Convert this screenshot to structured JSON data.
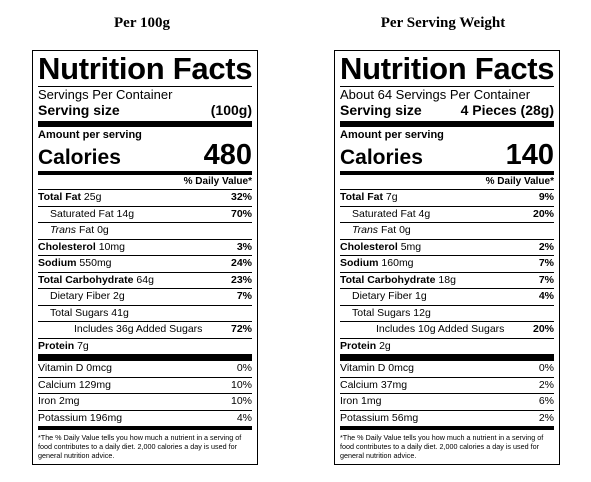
{
  "panels": [
    {
      "heading": "Per 100g",
      "title": "Nutrition Facts",
      "servings_per_container": "Servings Per Container",
      "serving_size_label": "Serving size",
      "serving_size_value": "(100g)",
      "amount_per_serving": "Amount per serving",
      "calories_label": "Calories",
      "calories_value": "480",
      "dv_header": "% Daily Value*",
      "rows": [
        {
          "name": "Total Fat",
          "amount": "25g",
          "dv": "32%"
        },
        {
          "name": "Saturated Fat",
          "amount": "14g",
          "dv": "70%"
        },
        {
          "name": "Trans",
          "amount": "Fat 0g",
          "dv": ""
        },
        {
          "name": "Cholesterol",
          "amount": "10mg",
          "dv": "3%"
        },
        {
          "name": "Sodium",
          "amount": "550mg",
          "dv": "24%"
        },
        {
          "name": "Total Carbohydrate",
          "amount": "64g",
          "dv": "23%"
        },
        {
          "name": "Dietary Fiber",
          "amount": "2g",
          "dv": "7%"
        },
        {
          "name": "Total Sugars",
          "amount": "41g",
          "dv": ""
        },
        {
          "name": "Includes 36g Added Sugars",
          "amount": "",
          "dv": "72%"
        },
        {
          "name": "Protein",
          "amount": "7g",
          "dv": ""
        }
      ],
      "vitamins": [
        {
          "name": "Vitamin D 0mcg",
          "dv": "0%"
        },
        {
          "name": "Calcium 129mg",
          "dv": "10%"
        },
        {
          "name": "Iron 2mg",
          "dv": "10%"
        },
        {
          "name": "Potassium 196mg",
          "dv": "4%"
        }
      ],
      "footnote": "*The % Daily Value tells you how much a nutrient in a serving of food contributes to a daily diet. 2,000 calories a day is used for general nutrition advice."
    },
    {
      "heading": "Per Serving Weight",
      "title": "Nutrition Facts",
      "servings_per_container": "About 64 Servings Per Container",
      "serving_size_label": "Serving size",
      "serving_size_value": "4 Pieces (28g)",
      "amount_per_serving": "Amount per serving",
      "calories_label": "Calories",
      "calories_value": "140",
      "dv_header": "% Daily Value*",
      "rows": [
        {
          "name": "Total Fat",
          "amount": "7g",
          "dv": "9%"
        },
        {
          "name": "Saturated Fat",
          "amount": "4g",
          "dv": "20%"
        },
        {
          "name": "Trans",
          "amount": "Fat 0g",
          "dv": ""
        },
        {
          "name": "Cholesterol",
          "amount": "5mg",
          "dv": "2%"
        },
        {
          "name": "Sodium",
          "amount": "160mg",
          "dv": "7%"
        },
        {
          "name": "Total Carbohydrate",
          "amount": "18g",
          "dv": "7%"
        },
        {
          "name": "Dietary Fiber",
          "amount": "1g",
          "dv": "4%"
        },
        {
          "name": "Total Sugars",
          "amount": "12g",
          "dv": ""
        },
        {
          "name": "Includes 10g Added Sugars",
          "amount": "",
          "dv": "20%"
        },
        {
          "name": "Protein",
          "amount": "2g",
          "dv": ""
        }
      ],
      "vitamins": [
        {
          "name": "Vitamin D 0mcg",
          "dv": "0%"
        },
        {
          "name": "Calcium 37mg",
          "dv": "2%"
        },
        {
          "name": "Iron 1mg",
          "dv": "6%"
        },
        {
          "name": "Potassium 56mg",
          "dv": "2%"
        }
      ],
      "footnote": "*The % Daily Value tells you how much a nutrient in a serving of food contributes to a daily diet. 2,000 calories a day is used for general nutrition advice."
    }
  ]
}
